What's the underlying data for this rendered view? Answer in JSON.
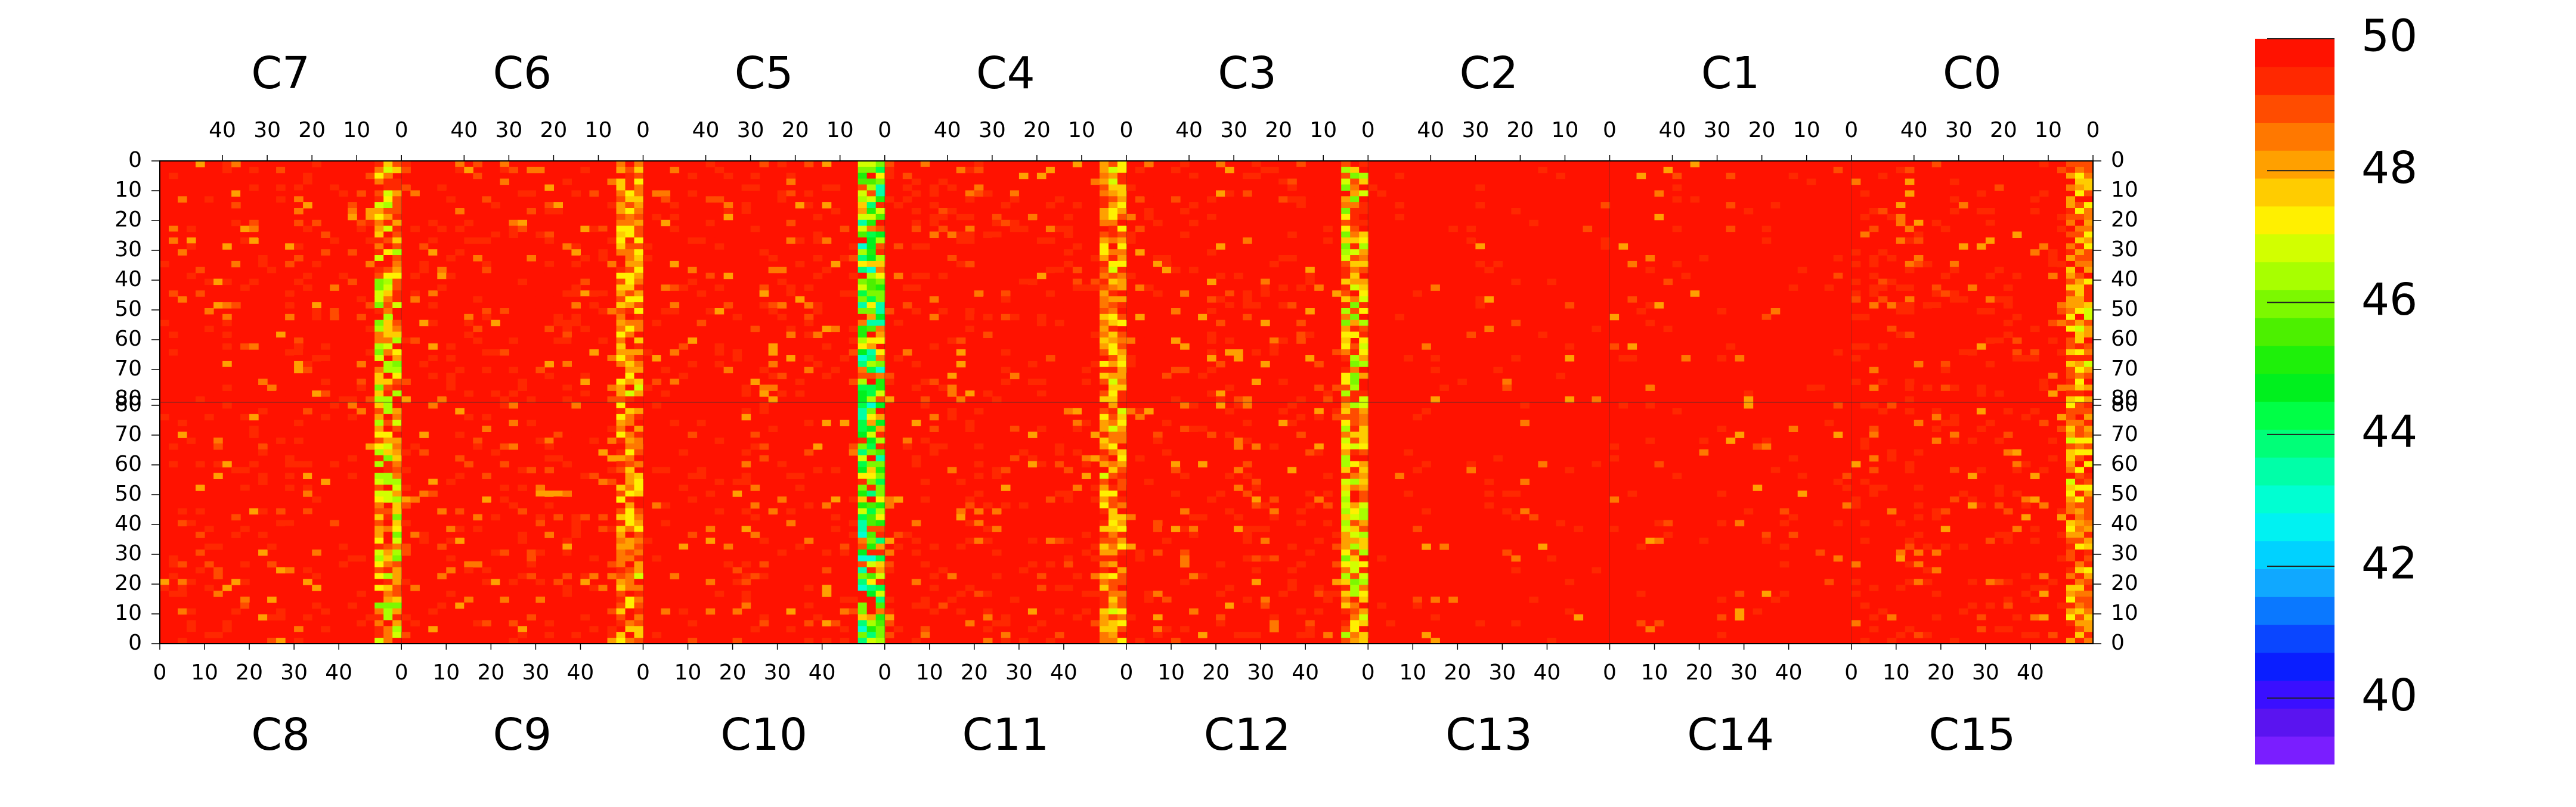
{
  "chart_data": {
    "type": "heatmap",
    "title": "",
    "xlabel": "",
    "ylabel": "",
    "top_panel_labels": [
      "C7",
      "C6",
      "C5",
      "C4",
      "C3",
      "C2",
      "C1",
      "C0"
    ],
    "bottom_panel_labels": [
      "C8",
      "C9",
      "C10",
      "C11",
      "C12",
      "C13",
      "C14",
      "C15"
    ],
    "top_x_ticks": [
      "40",
      "30",
      "20",
      "10",
      "0"
    ],
    "bottom_x_ticks": [
      "0",
      "10",
      "20",
      "30",
      "40"
    ],
    "x_range_per_panel": [
      0,
      54
    ],
    "top_y_ticks": [
      "0",
      "10",
      "20",
      "30",
      "40",
      "50",
      "60",
      "70",
      "80"
    ],
    "bottom_y_ticks": [
      "80",
      "70",
      "60",
      "50",
      "40",
      "30",
      "20",
      "10",
      "0"
    ],
    "y_range_per_half": [
      0,
      81
    ],
    "grid": false,
    "colorbar": {
      "position": "right",
      "range": [
        39,
        50
      ],
      "tick_labels": [
        "50",
        "48",
        "46",
        "44",
        "42",
        "40"
      ],
      "tick_values": [
        50,
        48,
        46,
        44,
        42,
        40
      ],
      "colors": [
        "#7a1eff",
        "#5a14f0",
        "#3a0fff",
        "#0a1eff",
        "#0a46ff",
        "#0a78ff",
        "#10a8ff",
        "#00d2ff",
        "#00f2f2",
        "#00ffd2",
        "#00ffa8",
        "#00ff78",
        "#00ff46",
        "#00f01e",
        "#1ef00a",
        "#4cf000",
        "#7cf800",
        "#a8ff00",
        "#d2ff00",
        "#fff000",
        "#ffcc00",
        "#ffa000",
        "#ff7800",
        "#ff4c00",
        "#ff2800",
        "#ff1200"
      ]
    },
    "dominant_value": 50,
    "note_columns": [
      {
        "panel_pair": "C7/C8",
        "edge": "right",
        "typical_min": 46
      },
      {
        "panel_pair": "C6/C9",
        "edge": "right",
        "typical_min": 47
      },
      {
        "panel_pair": "C5/C10",
        "edge": "right",
        "typical_min": 43
      },
      {
        "panel_pair": "C4/C11",
        "edge": "right",
        "typical_min": 47
      },
      {
        "panel_pair": "C3/C12",
        "edge": "right",
        "typical_min": 46
      },
      {
        "panel_pair": "C0/C15",
        "edge": "right",
        "typical_min": 47
      }
    ]
  }
}
